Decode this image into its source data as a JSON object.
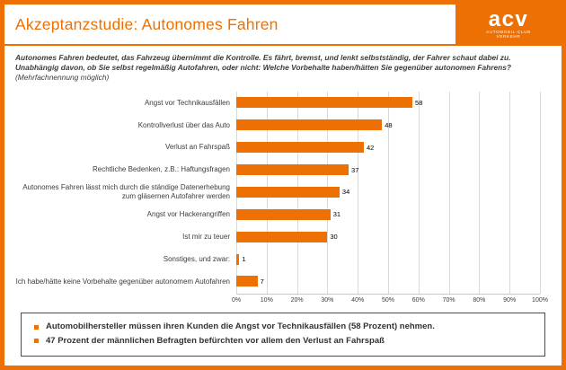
{
  "header": {
    "title": "Akzeptanzstudie: Autonomes Fahren",
    "logo": {
      "name": "acv",
      "subtitle_line1": "AUTOMOBIL-CLUB",
      "subtitle_line2": "VERKEHR"
    }
  },
  "intro": {
    "line1": "Autonomes Fahren bedeutet, das Fahrzeug übernimmt die Kontrolle. Es fährt, bremst, und lenkt selbstständig, der Fahrer schaut dabei zu.",
    "line2": "Unabhängig davon, ob Sie selbst regelmäßig Autofahren, oder nicht: Welche Vorbehalte haben/hätten Sie gegenüber autonomen Fahrens?",
    "note": "(Mehrfachnennung möglich)"
  },
  "chart_data": {
    "type": "bar",
    "orientation": "horizontal",
    "categories": [
      "Angst vor Technikausfällen",
      "Kontrollverlust über das Auto",
      "Verlust an Fahrspaß",
      "Rechtliche Bedenken, z.B.: Haftungsfragen",
      "Autonomes Fahren lässt mich durch die ständige Datenerhebung zum gläsernen Autofahrer werden",
      "Angst vor Hackerangriffen",
      "Ist mir zu teuer",
      "Sonstiges, und zwar:",
      "Ich habe/hätte keine Vorbehalte gegenüber autonomem Autofahren"
    ],
    "values": [
      58,
      48,
      42,
      37,
      34,
      31,
      30,
      1,
      7
    ],
    "unit": "Prozent",
    "xlim": [
      0,
      100
    ],
    "x_ticks": [
      "0%",
      "10%",
      "20%",
      "30%",
      "40%",
      "50%",
      "60%",
      "70%",
      "80%",
      "90%",
      "100%"
    ],
    "xlabel": "",
    "ylabel": "",
    "grid": true,
    "bar_color": "#ED7004"
  },
  "footer_box": {
    "bullets": [
      "Automobilhersteller müssen ihren Kunden die Angst vor Technikausfällen (58 Prozent) nehmen.",
      "47 Prozent der männlichen Befragten befürchten vor allem den Verlust an Fahrspaß"
    ]
  },
  "colors": {
    "accent": "#ED7004",
    "text": "#3C3C3B",
    "grid": "#D9D9D9",
    "box_border": "#4A4A4A"
  }
}
